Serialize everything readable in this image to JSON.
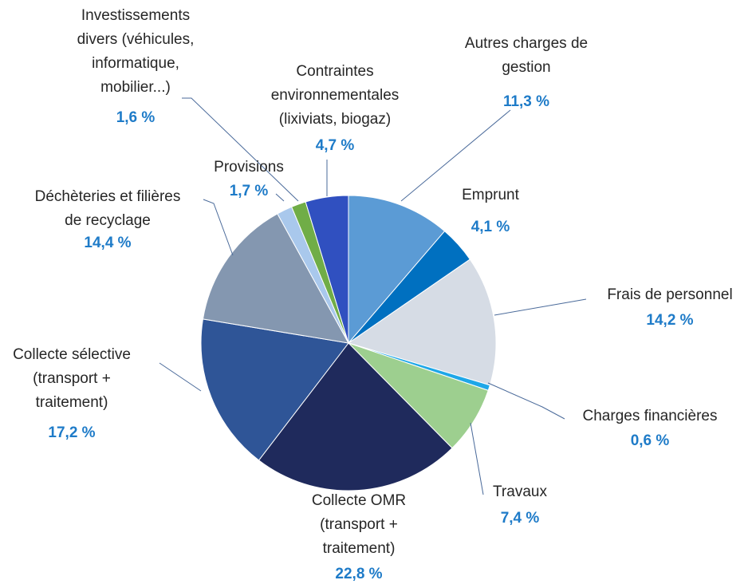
{
  "chart_data": {
    "type": "pie",
    "categories": [
      "Autres charges de\ngestion",
      "Emprunt",
      "Frais de personnel",
      "Charges financières",
      "Travaux",
      "Collecte OMR\n(transport +\ntraitement)",
      "Collecte sélective\n(transport +\ntraitement)",
      "Déchèteries et filières\nde recyclage",
      "Provisions",
      "Investissements\ndivers (véhicules,\ninformatique,\nmobilier...)",
      "Contraintes\nenvironnementales\n(lixiviats, biogaz)"
    ],
    "values": [
      11.3,
      4.1,
      14.2,
      0.6,
      7.4,
      22.8,
      17.2,
      14.4,
      1.7,
      1.6,
      4.7
    ],
    "value_labels": [
      "11,3 %",
      "4,1 %",
      "14,2 %",
      "0,6 %",
      "7,4 %",
      "22,8 %",
      "17,2 %",
      "14,4 %",
      "1,7 %",
      "1,6 %",
      "4,7 %"
    ],
    "colors": [
      "#5b9bd5",
      "#0070c0",
      "#d6dce5",
      "#1ea7e8",
      "#9dcf8f",
      "#1f2a5c",
      "#2f5597",
      "#8497b0",
      "#a9c8ec",
      "#70ad47",
      "#3050c0"
    ]
  }
}
